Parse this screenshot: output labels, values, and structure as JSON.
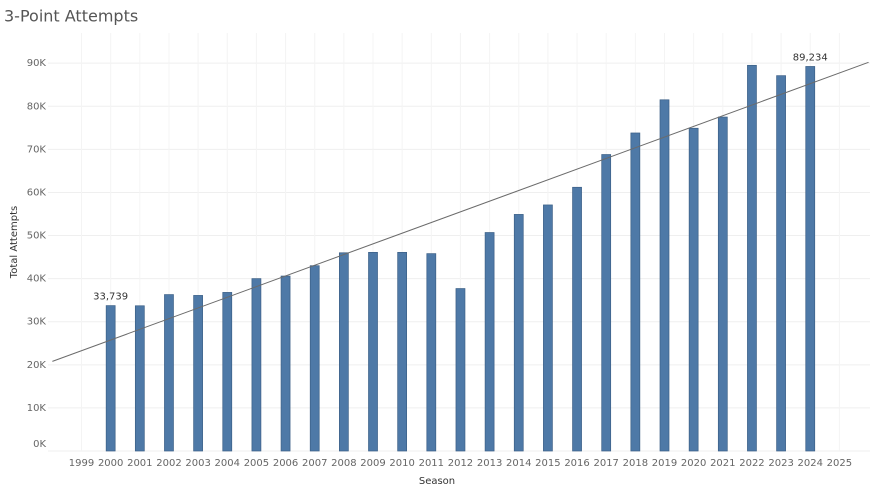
{
  "chart_data": {
    "type": "bar",
    "title": "3-Point Attempts",
    "x_label": "Season",
    "y_label": "Total Attempts",
    "x": [
      1999,
      2000,
      2001,
      2002,
      2003,
      2004,
      2005,
      2006,
      2007,
      2008,
      2009,
      2010,
      2011,
      2012,
      2013,
      2014,
      2015,
      2016,
      2017,
      2018,
      2019,
      2020,
      2021,
      2022,
      2023,
      2024,
      2025
    ],
    "values": [
      null,
      33739,
      33700,
      36300,
      36100,
      36800,
      40000,
      40600,
      43000,
      46000,
      46100,
      46100,
      45800,
      37700,
      50700,
      54900,
      57100,
      61200,
      68800,
      73800,
      81500,
      74900,
      77500,
      89500,
      87100,
      89234,
      null
    ],
    "value_labels": [
      null,
      "33,739",
      null,
      null,
      null,
      null,
      null,
      null,
      null,
      null,
      null,
      null,
      null,
      null,
      null,
      null,
      null,
      null,
      null,
      null,
      null,
      null,
      null,
      null,
      null,
      "89,234",
      null
    ],
    "color": "#4e79a7",
    "trend": {
      "x": [
        1998,
        2026
      ],
      "values": [
        20800,
        90200
      ],
      "color": "#6b6b6b"
    },
    "xlim": [
      1997.85,
      2026.05
    ],
    "xticks": [
      1999,
      2000,
      2001,
      2002,
      2003,
      2004,
      2005,
      2006,
      2007,
      2008,
      2009,
      2010,
      2011,
      2012,
      2013,
      2014,
      2015,
      2016,
      2017,
      2018,
      2019,
      2020,
      2021,
      2022,
      2023,
      2024,
      2025
    ],
    "ylim": [
      0,
      97000
    ],
    "yticks": [
      {
        "value": 0,
        "label": "0K"
      },
      {
        "value": 10000,
        "label": "10K"
      },
      {
        "value": 20000,
        "label": "20K"
      },
      {
        "value": 30000,
        "label": "30K"
      },
      {
        "value": 40000,
        "label": "40K"
      },
      {
        "value": 50000,
        "label": "50K"
      },
      {
        "value": 60000,
        "label": "60K"
      },
      {
        "value": 70000,
        "label": "70K"
      },
      {
        "value": 80000,
        "label": "80K"
      },
      {
        "value": 90000,
        "label": "90K"
      }
    ],
    "grid": true
  }
}
